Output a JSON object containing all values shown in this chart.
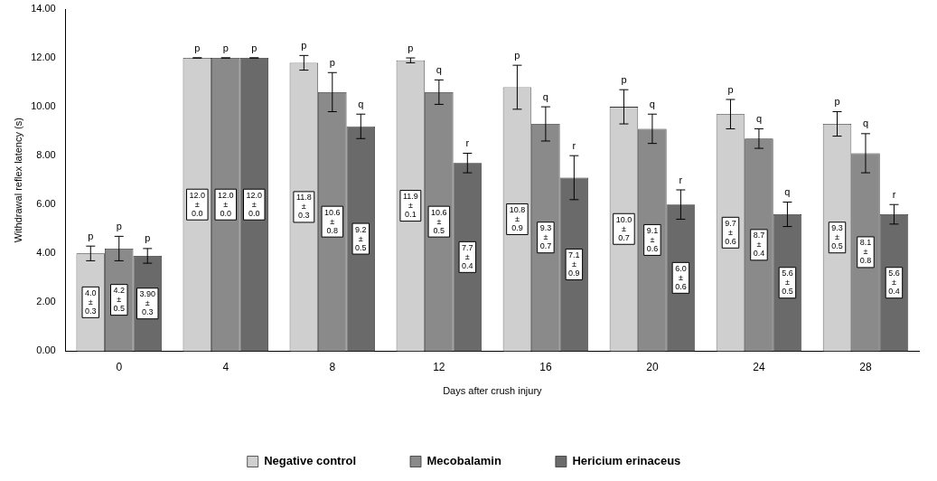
{
  "chart_data": {
    "type": "bar",
    "xlabel": "Days after crush injury",
    "ylabel": "Withdrawal reflex latency (s)",
    "categories": [
      "0",
      "4",
      "8",
      "12",
      "16",
      "20",
      "24",
      "28"
    ],
    "ylim": [
      0,
      14
    ],
    "yticks": [
      {
        "value": 0,
        "label": "0.00"
      },
      {
        "value": 2,
        "label": "2.00"
      },
      {
        "value": 4,
        "label": "4.00"
      },
      {
        "value": 6,
        "label": "6.00"
      },
      {
        "value": 8,
        "label": "8.00"
      },
      {
        "value": 10,
        "label": "10.00"
      },
      {
        "value": 12,
        "label": "12.00"
      },
      {
        "value": 14,
        "label": "14.00"
      }
    ],
    "grid": false,
    "legend": "bottom",
    "series": [
      {
        "name": "Negative control",
        "color": "#cfcfcf",
        "values": [
          4.0,
          12.0,
          11.8,
          11.9,
          10.8,
          10.0,
          9.7,
          9.3
        ],
        "errors": [
          0.3,
          0.0,
          0.3,
          0.1,
          0.9,
          0.7,
          0.6,
          0.5
        ],
        "value_labels": [
          "4.0\n±\n0.3",
          "12.0\n±\n0.0",
          "11.8\n±\n0.3",
          "11.9\n±\n0.1",
          "10.8\n±\n0.9",
          "10.0\n±\n0.7",
          "9.7\n±\n0.6",
          "9.3\n±\n0.5"
        ]
      },
      {
        "name": "Mecobalamin",
        "color": "#8a8a8a",
        "values": [
          4.2,
          12.0,
          10.6,
          10.6,
          9.3,
          9.1,
          8.7,
          8.1
        ],
        "errors": [
          0.5,
          0.0,
          0.8,
          0.5,
          0.7,
          0.6,
          0.4,
          0.8
        ],
        "value_labels": [
          "4.2\n±\n0.5",
          "12.0\n±\n0.0",
          "10.6\n±\n0.8",
          "10.6\n±\n0.5",
          "9.3\n±\n0.7",
          "9.1\n±\n0.6",
          "8.7\n±\n0.4",
          "8.1\n±\n0.8"
        ]
      },
      {
        "name": "Hericium erinaceus",
        "color": "#6a6a6a",
        "values": [
          3.9,
          12.0,
          9.2,
          7.7,
          7.1,
          6.0,
          5.6,
          5.6
        ],
        "errors": [
          0.3,
          0.0,
          0.5,
          0.4,
          0.9,
          0.6,
          0.5,
          0.4
        ],
        "value_labels": [
          "3.90\n±\n0.3",
          "12.0\n±\n0.0",
          "9.2\n±\n0.5",
          "7.7\n±\n0.4",
          "7.1\n±\n0.9",
          "6.0\n±\n0.6",
          "5.6\n±\n0.5",
          "5.6\n±\n0.4"
        ]
      }
    ],
    "annotations": [
      "p",
      "p",
      "p",
      "p",
      "p",
      "p",
      "p",
      "p",
      "q",
      "p",
      "q",
      "r",
      "p",
      "q",
      "r",
      "p",
      "q",
      "r",
      "p",
      "q",
      "q",
      "p",
      "q",
      "r"
    ]
  }
}
